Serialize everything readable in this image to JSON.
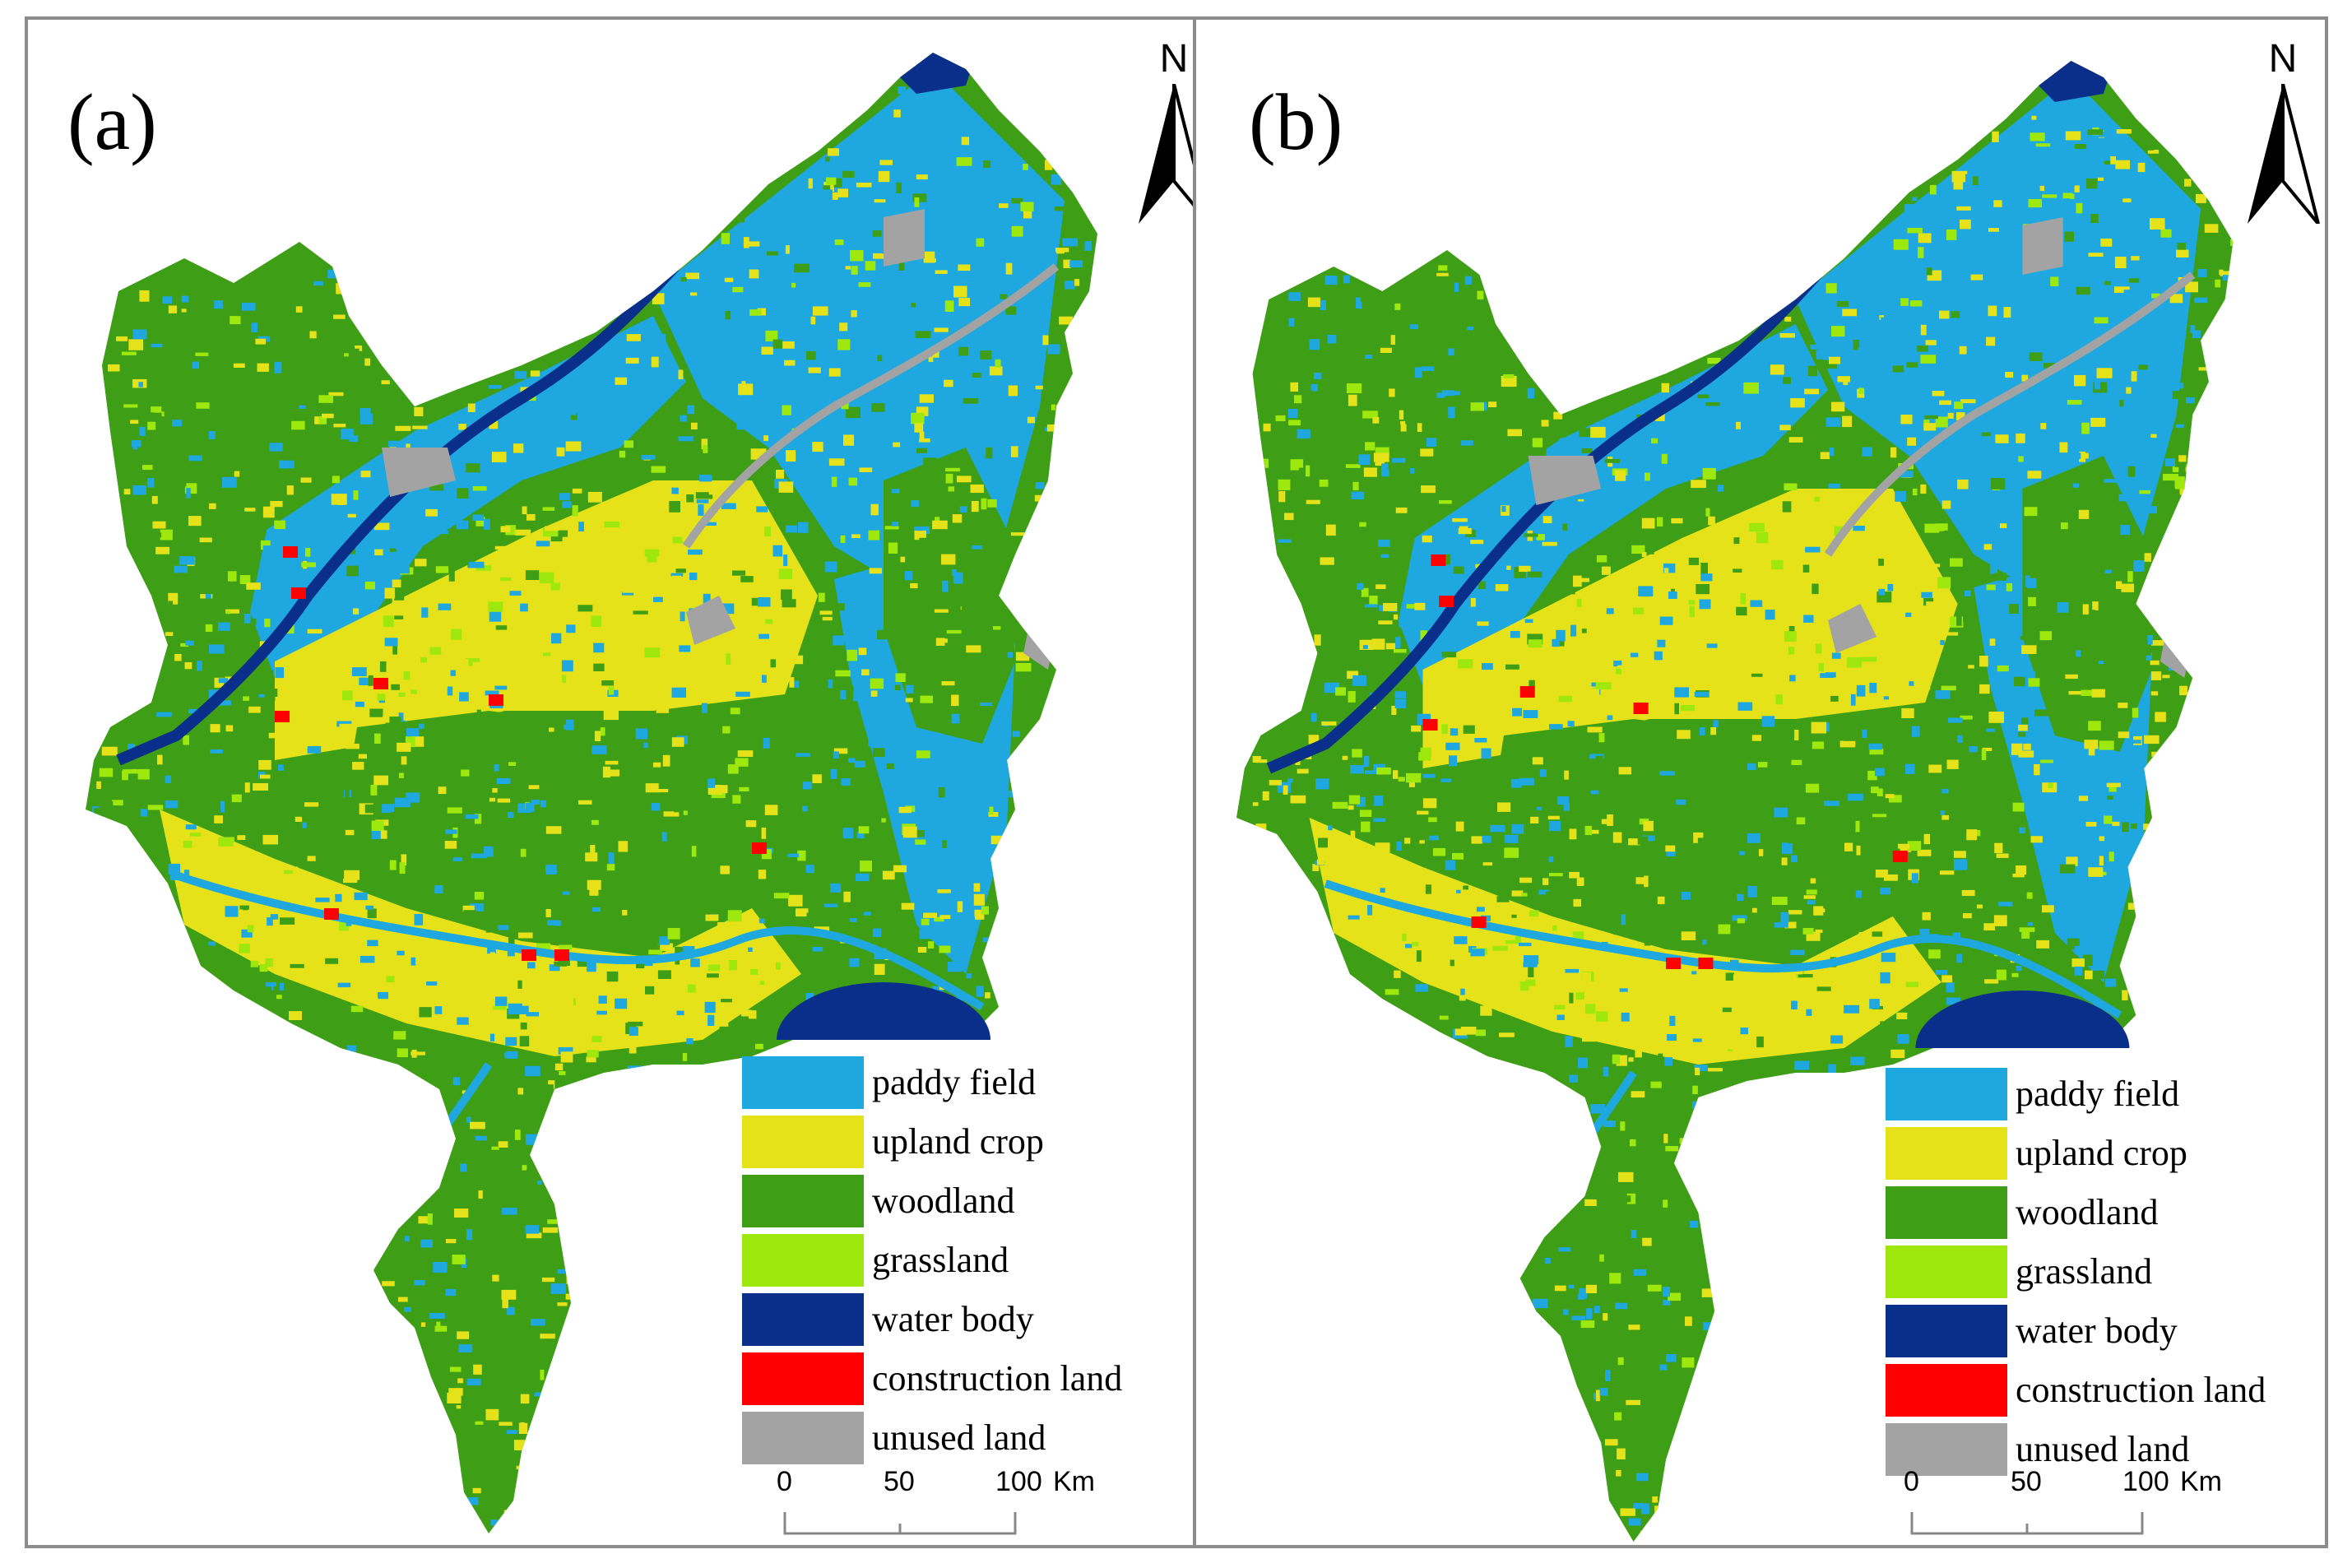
{
  "colors": {
    "paddy_field": "#1fa8e0",
    "upland_crop": "#e6e21a",
    "woodland": "#3e9e16",
    "grassland": "#9ee80e",
    "water_body": "#0a2f8a",
    "construction_land": "#ff0000",
    "unused_land": "#a3a3a3",
    "frame": "#8c8c8c"
  },
  "panels": [
    {
      "label": "(a)"
    },
    {
      "label": "(b)"
    }
  ],
  "north_arrow": {
    "letter": "N",
    "icon": "north-arrow-icon"
  },
  "legend": [
    {
      "key": "paddy_field",
      "label": "paddy field"
    },
    {
      "key": "upland_crop",
      "label": "upland crop"
    },
    {
      "key": "woodland",
      "label": "woodland"
    },
    {
      "key": "grassland",
      "label": "grassland"
    },
    {
      "key": "water_body",
      "label": "water body"
    },
    {
      "key": "construction_land",
      "label": "construction land"
    },
    {
      "key": "unused_land",
      "label": "unused land"
    }
  ],
  "scale_bar": {
    "ticks": [
      "0",
      "50",
      "100"
    ],
    "unit": "Km"
  }
}
